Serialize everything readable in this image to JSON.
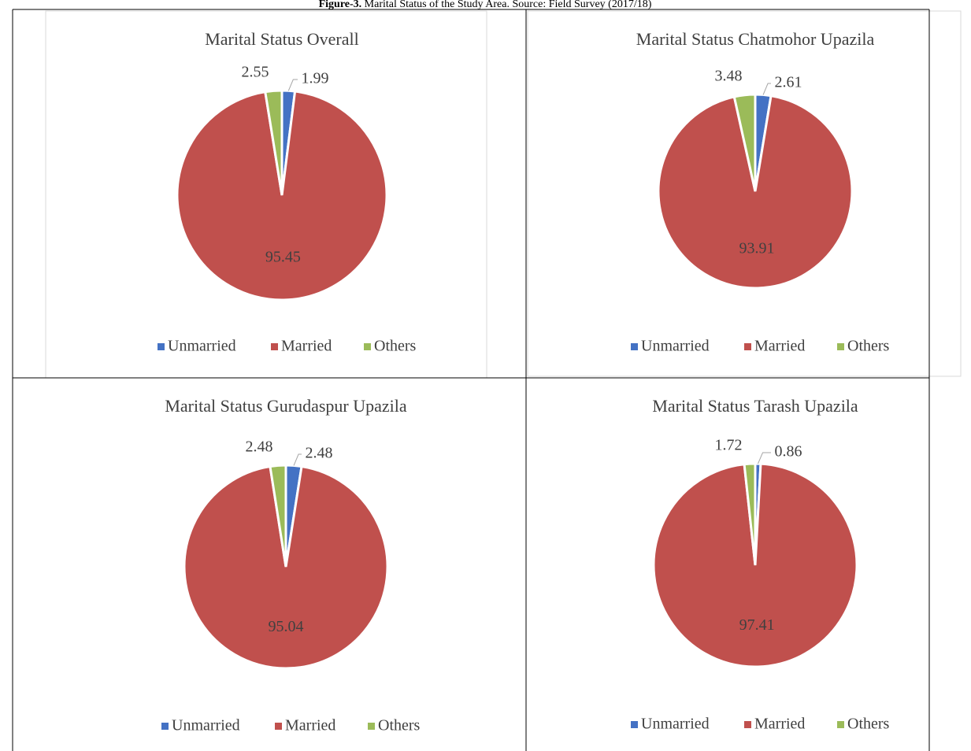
{
  "caption": {
    "label": "Figure-3.",
    "text": "Marital Status of the Study Area. Source: Field Survey (2017/18)"
  },
  "chart_data": [
    {
      "type": "pie",
      "title": "Marital Status Overall",
      "categories": [
        "Unmarried",
        "Married",
        "Others"
      ],
      "values": [
        1.99,
        95.45,
        2.55
      ],
      "colors": [
        "#4472c4",
        "#c0504d",
        "#9bbb59"
      ]
    },
    {
      "type": "pie",
      "title": "Marital Status Chatmohor Upazila",
      "categories": [
        "Unmarried",
        "Married",
        "Others"
      ],
      "values": [
        2.61,
        93.91,
        3.48
      ],
      "colors": [
        "#4472c4",
        "#c0504d",
        "#9bbb59"
      ]
    },
    {
      "type": "pie",
      "title": "Marital Status Gurudaspur Upazila",
      "categories": [
        "Unmarried",
        "Married",
        "Others"
      ],
      "values": [
        2.48,
        95.04,
        2.48
      ],
      "colors": [
        "#4472c4",
        "#c0504d",
        "#9bbb59"
      ]
    },
    {
      "type": "pie",
      "title": "Marital Status Tarash Upazila",
      "categories": [
        "Unmarried",
        "Married",
        "Others"
      ],
      "values": [
        0.86,
        97.41,
        1.72
      ],
      "colors": [
        "#4472c4",
        "#c0504d",
        "#9bbb59"
      ]
    }
  ]
}
